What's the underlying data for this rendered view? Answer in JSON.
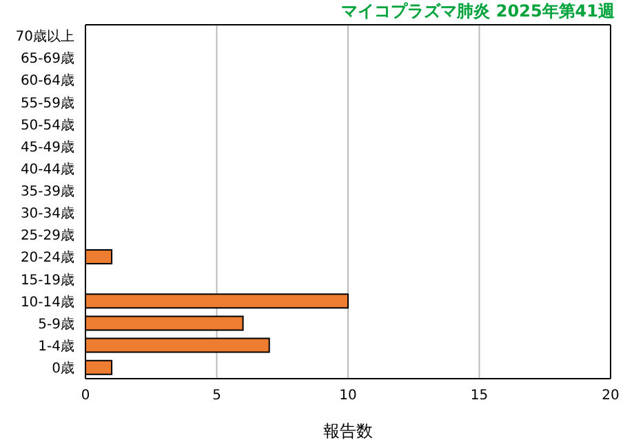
{
  "chart_data": {
    "type": "bar",
    "orientation": "horizontal",
    "title": "マイコプラズマ肺炎 2025年第41週",
    "xlabel": "報告数",
    "categories": [
      "70歳以上",
      "65-69歳",
      "60-64歳",
      "55-59歳",
      "50-54歳",
      "45-49歳",
      "40-44歳",
      "35-39歳",
      "30-34歳",
      "25-29歳",
      "20-24歳",
      "15-19歳",
      "10-14歳",
      "5-9歳",
      "1-4歳",
      "0歳"
    ],
    "values": [
      0,
      0,
      0,
      0,
      0,
      0,
      0,
      0,
      0,
      0,
      1,
      0,
      10,
      6,
      7,
      1
    ],
    "color": "#ed7d31",
    "xlim": [
      0,
      20
    ],
    "xticks": [
      0,
      5,
      10,
      15,
      20
    ],
    "grid": "x",
    "legend": false
  }
}
